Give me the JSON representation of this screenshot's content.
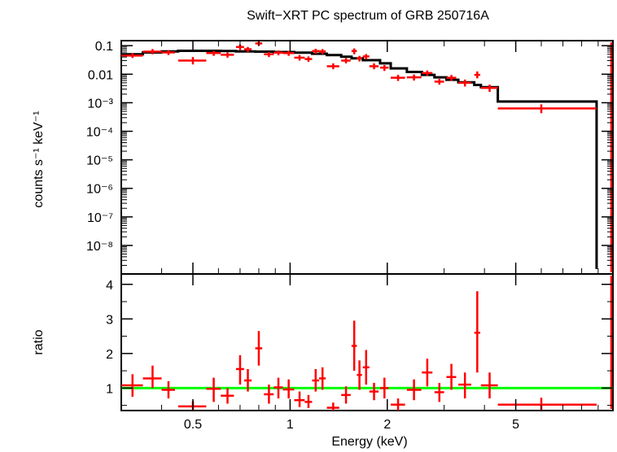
{
  "chart_data": [
    {
      "type": "line",
      "title": "Swift−XRT PC spectrum of GRB 250716A",
      "ylabel": "counts s⁻¹ keV⁻¹",
      "xlabel": "",
      "xscale": "log",
      "yscale": "log",
      "xlim": [
        0.3,
        10
      ],
      "ylim": [
        1e-09,
        0.15
      ],
      "ytick_labels": [
        "0.1",
        "0.01",
        "10⁻³",
        "10⁻⁴",
        "10⁻⁵",
        "10⁻⁶",
        "10⁻⁷",
        "10⁻⁸"
      ],
      "ytick_values": [
        0.1,
        0.01,
        0.001,
        0.0001,
        1e-05,
        1e-06,
        1e-07,
        1e-08
      ],
      "series": [
        {
          "color": "#ff0000",
          "style": "crosses",
          "points": [
            {
              "x": 0.325,
              "xlo": 0.3,
              "xhi": 0.35,
              "y": 0.045,
              "ylo": 0.037,
              "yhi": 0.055
            },
            {
              "x": 0.375,
              "xlo": 0.35,
              "xhi": 0.4,
              "y": 0.062,
              "ylo": 0.05,
              "yhi": 0.076
            },
            {
              "x": 0.42,
              "xlo": 0.4,
              "xhi": 0.44,
              "y": 0.058,
              "ylo": 0.047,
              "yhi": 0.07
            },
            {
              "x": 0.5,
              "xlo": 0.45,
              "xhi": 0.55,
              "y": 0.03,
              "ylo": 0.022,
              "yhi": 0.04
            },
            {
              "x": 0.58,
              "xlo": 0.55,
              "xhi": 0.61,
              "y": 0.055,
              "ylo": 0.044,
              "yhi": 0.066
            },
            {
              "x": 0.64,
              "xlo": 0.61,
              "xhi": 0.67,
              "y": 0.048,
              "ylo": 0.038,
              "yhi": 0.058
            },
            {
              "x": 0.7,
              "xlo": 0.68,
              "xhi": 0.72,
              "y": 0.09,
              "ylo": 0.07,
              "yhi": 0.11
            },
            {
              "x": 0.74,
              "xlo": 0.72,
              "xhi": 0.76,
              "y": 0.075,
              "ylo": 0.06,
              "yhi": 0.09
            },
            {
              "x": 0.8,
              "xlo": 0.78,
              "xhi": 0.82,
              "y": 0.12,
              "ylo": 0.1,
              "yhi": 0.145
            },
            {
              "x": 0.86,
              "xlo": 0.83,
              "xhi": 0.89,
              "y": 0.05,
              "ylo": 0.04,
              "yhi": 0.06
            },
            {
              "x": 0.92,
              "xlo": 0.89,
              "xhi": 0.95,
              "y": 0.057,
              "ylo": 0.046,
              "yhi": 0.068
            },
            {
              "x": 0.99,
              "xlo": 0.95,
              "xhi": 1.03,
              "y": 0.055,
              "ylo": 0.044,
              "yhi": 0.066
            },
            {
              "x": 1.07,
              "xlo": 1.03,
              "xhi": 1.11,
              "y": 0.038,
              "ylo": 0.03,
              "yhi": 0.047
            },
            {
              "x": 1.14,
              "xlo": 1.11,
              "xhi": 1.17,
              "y": 0.034,
              "ylo": 0.027,
              "yhi": 0.042
            },
            {
              "x": 1.2,
              "xlo": 1.17,
              "xhi": 1.23,
              "y": 0.065,
              "ylo": 0.052,
              "yhi": 0.078
            },
            {
              "x": 1.26,
              "xlo": 1.23,
              "xhi": 1.29,
              "y": 0.063,
              "ylo": 0.05,
              "yhi": 0.076
            },
            {
              "x": 1.36,
              "xlo": 1.3,
              "xhi": 1.42,
              "y": 0.019,
              "ylo": 0.015,
              "yhi": 0.024
            },
            {
              "x": 1.49,
              "xlo": 1.44,
              "xhi": 1.54,
              "y": 0.03,
              "ylo": 0.024,
              "yhi": 0.037
            },
            {
              "x": 1.58,
              "xlo": 1.55,
              "xhi": 1.61,
              "y": 0.065,
              "ylo": 0.05,
              "yhi": 0.08
            },
            {
              "x": 1.64,
              "xlo": 1.61,
              "xhi": 1.67,
              "y": 0.036,
              "ylo": 0.028,
              "yhi": 0.044
            },
            {
              "x": 1.72,
              "xlo": 1.68,
              "xhi": 1.76,
              "y": 0.042,
              "ylo": 0.033,
              "yhi": 0.051
            },
            {
              "x": 1.82,
              "xlo": 1.76,
              "xhi": 1.88,
              "y": 0.019,
              "ylo": 0.015,
              "yhi": 0.024
            },
            {
              "x": 1.96,
              "xlo": 1.9,
              "xhi": 2.02,
              "y": 0.017,
              "ylo": 0.013,
              "yhi": 0.021
            },
            {
              "x": 2.16,
              "xlo": 2.05,
              "xhi": 2.27,
              "y": 0.0075,
              "ylo": 0.0058,
              "yhi": 0.0095
            },
            {
              "x": 2.42,
              "xlo": 2.3,
              "xhi": 2.55,
              "y": 0.0078,
              "ylo": 0.006,
              "yhi": 0.0098
            },
            {
              "x": 2.66,
              "xlo": 2.56,
              "xhi": 2.76,
              "y": 0.011,
              "ylo": 0.0088,
              "yhi": 0.0135
            },
            {
              "x": 2.9,
              "xlo": 2.8,
              "xhi": 3.0,
              "y": 0.0055,
              "ylo": 0.0043,
              "yhi": 0.0069
            },
            {
              "x": 3.16,
              "xlo": 3.05,
              "xhi": 3.27,
              "y": 0.0075,
              "ylo": 0.0058,
              "yhi": 0.0094
            },
            {
              "x": 3.48,
              "xlo": 3.32,
              "xhi": 3.64,
              "y": 0.005,
              "ylo": 0.0037,
              "yhi": 0.0065
            },
            {
              "x": 3.8,
              "xlo": 3.72,
              "xhi": 3.88,
              "y": 0.0095,
              "ylo": 0.0072,
              "yhi": 0.0125
            },
            {
              "x": 4.15,
              "xlo": 3.9,
              "xhi": 4.4,
              "y": 0.0033,
              "ylo": 0.0024,
              "yhi": 0.0043
            },
            {
              "x": 6.0,
              "xlo": 4.4,
              "xhi": 8.9,
              "y": 0.00063,
              "ylo": 0.00043,
              "yhi": 0.00088
            }
          ]
        },
        {
          "color": "#000000",
          "style": "step",
          "points": [
            {
              "x": 0.3,
              "y": 0.05
            },
            {
              "x": 0.35,
              "y": 0.058
            },
            {
              "x": 0.4,
              "y": 0.063
            },
            {
              "x": 0.45,
              "y": 0.066
            },
            {
              "x": 0.55,
              "y": 0.066
            },
            {
              "x": 0.61,
              "y": 0.065
            },
            {
              "x": 0.68,
              "y": 0.063
            },
            {
              "x": 0.78,
              "y": 0.062
            },
            {
              "x": 0.89,
              "y": 0.06
            },
            {
              "x": 1.03,
              "y": 0.057
            },
            {
              "x": 1.17,
              "y": 0.052
            },
            {
              "x": 1.3,
              "y": 0.047
            },
            {
              "x": 1.44,
              "y": 0.041
            },
            {
              "x": 1.55,
              "y": 0.036
            },
            {
              "x": 1.68,
              "y": 0.031
            },
            {
              "x": 1.9,
              "y": 0.024
            },
            {
              "x": 2.05,
              "y": 0.016
            },
            {
              "x": 2.3,
              "y": 0.012
            },
            {
              "x": 2.56,
              "y": 0.0095
            },
            {
              "x": 2.8,
              "y": 0.0078
            },
            {
              "x": 3.05,
              "y": 0.0064
            },
            {
              "x": 3.32,
              "y": 0.0052
            },
            {
              "x": 3.72,
              "y": 0.0042
            },
            {
              "x": 3.9,
              "y": 0.0035
            },
            {
              "x": 4.4,
              "y": 0.0011
            },
            {
              "x": 8.9,
              "y": 0.00025
            }
          ]
        }
      ]
    },
    {
      "type": "scatter",
      "xlabel": "Energy (keV)",
      "ylabel": "ratio",
      "xscale": "log",
      "xlim": [
        0.3,
        10
      ],
      "ylim": [
        0.35,
        4.3
      ],
      "xtick_labels": [
        "0.5",
        "1",
        "2",
        "5"
      ],
      "xtick_values": [
        0.5,
        1,
        2,
        5
      ],
      "ytick_labels": [
        "1",
        "2",
        "3",
        "4"
      ],
      "ytick_values": [
        1,
        2,
        3,
        4
      ],
      "reference_line": {
        "y": 1,
        "color": "#00ff00"
      },
      "series": [
        {
          "color": "#ff0000",
          "style": "crosses",
          "points": [
            {
              "x": 0.325,
              "xlo": 0.3,
              "xhi": 0.35,
              "y": 1.08,
              "ylo": 0.75,
              "yhi": 1.4
            },
            {
              "x": 0.375,
              "xlo": 0.35,
              "xhi": 0.4,
              "y": 1.28,
              "ylo": 1.0,
              "yhi": 1.65
            },
            {
              "x": 0.42,
              "xlo": 0.4,
              "xhi": 0.44,
              "y": 0.95,
              "ylo": 0.7,
              "yhi": 1.2
            },
            {
              "x": 0.5,
              "xlo": 0.45,
              "xhi": 0.55,
              "y": 0.47,
              "ylo": 0.35,
              "yhi": 0.62
            },
            {
              "x": 0.58,
              "xlo": 0.55,
              "xhi": 0.61,
              "y": 0.98,
              "ylo": 0.6,
              "yhi": 1.3
            },
            {
              "x": 0.64,
              "xlo": 0.61,
              "xhi": 0.67,
              "y": 0.78,
              "ylo": 0.55,
              "yhi": 1.0
            },
            {
              "x": 0.7,
              "xlo": 0.68,
              "xhi": 0.72,
              "y": 1.55,
              "ylo": 1.1,
              "yhi": 1.95
            },
            {
              "x": 0.74,
              "xlo": 0.72,
              "xhi": 0.76,
              "y": 1.22,
              "ylo": 0.9,
              "yhi": 1.55
            },
            {
              "x": 0.8,
              "xlo": 0.78,
              "xhi": 0.82,
              "y": 2.15,
              "ylo": 1.65,
              "yhi": 2.65
            },
            {
              "x": 0.86,
              "xlo": 0.83,
              "xhi": 0.89,
              "y": 0.82,
              "ylo": 0.55,
              "yhi": 1.1
            },
            {
              "x": 0.92,
              "xlo": 0.89,
              "xhi": 0.95,
              "y": 1.02,
              "ylo": 0.7,
              "yhi": 1.3
            },
            {
              "x": 0.99,
              "xlo": 0.95,
              "xhi": 1.03,
              "y": 0.96,
              "ylo": 0.7,
              "yhi": 1.25
            },
            {
              "x": 1.07,
              "xlo": 1.03,
              "xhi": 1.11,
              "y": 0.65,
              "ylo": 0.45,
              "yhi": 0.9
            },
            {
              "x": 1.14,
              "xlo": 1.11,
              "xhi": 1.17,
              "y": 0.6,
              "ylo": 0.42,
              "yhi": 0.8
            },
            {
              "x": 1.2,
              "xlo": 1.17,
              "xhi": 1.23,
              "y": 1.22,
              "ylo": 0.9,
              "yhi": 1.55
            },
            {
              "x": 1.26,
              "xlo": 1.23,
              "xhi": 1.29,
              "y": 1.28,
              "ylo": 0.95,
              "yhi": 1.6
            },
            {
              "x": 1.36,
              "xlo": 1.3,
              "xhi": 1.42,
              "y": 0.43,
              "ylo": 0.3,
              "yhi": 0.58
            },
            {
              "x": 1.49,
              "xlo": 1.44,
              "xhi": 1.54,
              "y": 0.8,
              "ylo": 0.55,
              "yhi": 1.05
            },
            {
              "x": 1.58,
              "xlo": 1.55,
              "xhi": 1.61,
              "y": 2.22,
              "ylo": 1.5,
              "yhi": 2.95
            },
            {
              "x": 1.64,
              "xlo": 1.61,
              "xhi": 1.67,
              "y": 1.38,
              "ylo": 0.95,
              "yhi": 1.8
            },
            {
              "x": 1.72,
              "xlo": 1.68,
              "xhi": 1.76,
              "y": 1.6,
              "ylo": 1.1,
              "yhi": 2.1
            },
            {
              "x": 1.82,
              "xlo": 1.76,
              "xhi": 1.88,
              "y": 0.9,
              "ylo": 0.65,
              "yhi": 1.15
            },
            {
              "x": 1.96,
              "xlo": 1.9,
              "xhi": 2.02,
              "y": 1.0,
              "ylo": 0.7,
              "yhi": 1.3
            },
            {
              "x": 2.16,
              "xlo": 2.05,
              "xhi": 2.27,
              "y": 0.52,
              "ylo": 0.35,
              "yhi": 0.7
            },
            {
              "x": 2.42,
              "xlo": 2.3,
              "xhi": 2.55,
              "y": 0.95,
              "ylo": 0.65,
              "yhi": 1.25
            },
            {
              "x": 2.66,
              "xlo": 2.56,
              "xhi": 2.76,
              "y": 1.45,
              "ylo": 1.05,
              "yhi": 1.85
            },
            {
              "x": 2.9,
              "xlo": 2.8,
              "xhi": 3.0,
              "y": 0.88,
              "ylo": 0.6,
              "yhi": 1.15
            },
            {
              "x": 3.16,
              "xlo": 3.05,
              "xhi": 3.27,
              "y": 1.32,
              "ylo": 0.95,
              "yhi": 1.7
            },
            {
              "x": 3.48,
              "xlo": 3.32,
              "xhi": 3.64,
              "y": 1.1,
              "ylo": 0.7,
              "yhi": 1.45
            },
            {
              "x": 3.8,
              "xlo": 3.72,
              "xhi": 3.88,
              "y": 2.6,
              "ylo": 1.45,
              "yhi": 3.8
            },
            {
              "x": 4.15,
              "xlo": 3.9,
              "xhi": 4.4,
              "y": 1.08,
              "ylo": 0.7,
              "yhi": 1.45
            },
            {
              "x": 6.0,
              "xlo": 4.4,
              "xhi": 8.9,
              "y": 0.52,
              "ylo": 0.35,
              "yhi": 0.72
            }
          ]
        }
      ]
    }
  ]
}
